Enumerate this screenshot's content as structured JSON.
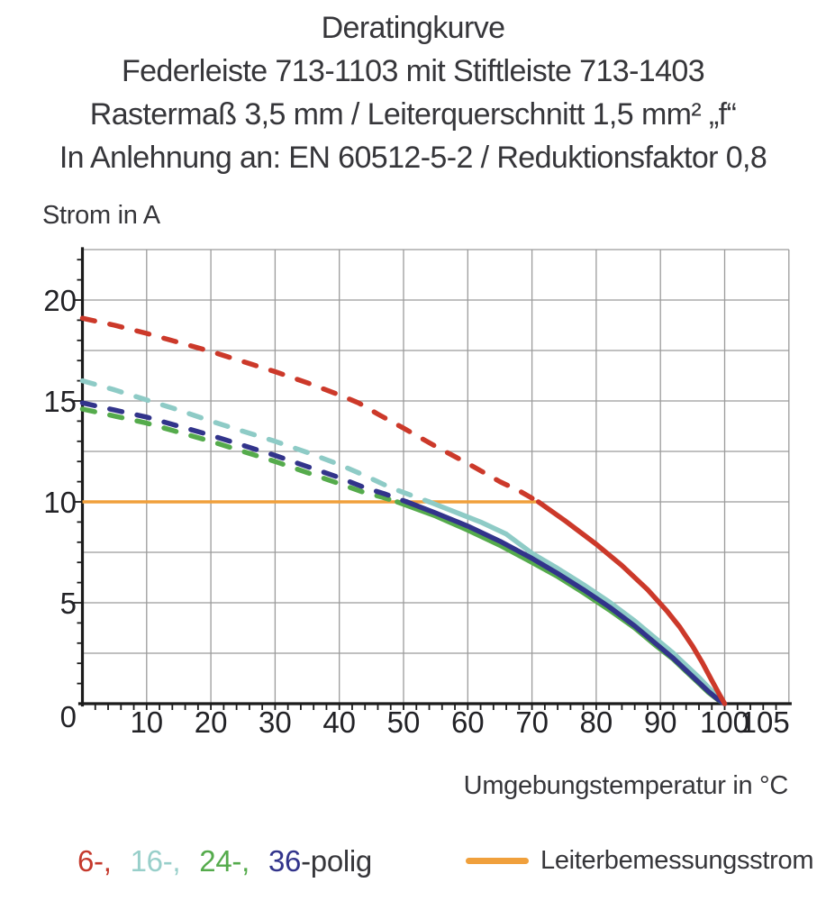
{
  "title": {
    "line1": "Deratingkurve",
    "line2": "Federleiste 713-1103 mit Stiftleiste 713-1403",
    "line3": "Rastermaß 3,5 mm / Leiterquerschnitt 1,5 mm² „f“",
    "line4": "In Anlehnung an: EN 60512-5-2 / Reduktionsfaktor 0,8"
  },
  "axes": {
    "y_label": "Strom in A",
    "x_label": "Umgebungstemperatur in °C"
  },
  "legend": {
    "pole_items": [
      {
        "label": "6-,",
        "color": "#c5392c"
      },
      {
        "label": "16-,",
        "color": "#98cfca"
      },
      {
        "label": "24-,",
        "color": "#55ab4c"
      },
      {
        "label": "36",
        "color": "#32348b"
      }
    ],
    "pole_suffix": {
      "label": "-polig",
      "color": "#36363a"
    },
    "rated_current_label": "Leiterbemessungsstrom",
    "rated_current_color": "#f0a03c"
  },
  "chart_data": {
    "type": "line",
    "title": "Deratingkurve Federleiste 713-1103 mit Stiftleiste 713-1403",
    "xlabel": "Umgebungstemperatur in °C",
    "ylabel": "Strom in A",
    "xlim": [
      0,
      110
    ],
    "ylim": [
      0,
      22.5
    ],
    "x_gridline_step": 10,
    "y_gridline_step": 2.5,
    "x_minor_tick_step": 2,
    "y_minor_tick_step": 1,
    "x_tick_labels": [
      10,
      20,
      30,
      40,
      50,
      60,
      70,
      80,
      90,
      100,
      105
    ],
    "y_tick_labels": [
      0,
      5,
      10,
      15,
      20
    ],
    "grid_color": "#9b9b9b",
    "axis_color": "#1b1b1b",
    "reference_line": {
      "name": "Leiterbemessungsstrom",
      "y": 10,
      "x_start": 0,
      "x_end": 71,
      "color": "#f0a03c"
    },
    "series": [
      {
        "name": "24-polig",
        "color": "#55ab4c",
        "dashed_points": [
          [
            0,
            14.6
          ],
          [
            5,
            14.25
          ],
          [
            10,
            13.9
          ],
          [
            15,
            13.45
          ],
          [
            20,
            13.0
          ],
          [
            25,
            12.5
          ],
          [
            30,
            12.0
          ],
          [
            35,
            11.45
          ],
          [
            40,
            10.9
          ],
          [
            44,
            10.45
          ],
          [
            46.5,
            10.25
          ],
          [
            49,
            10.0
          ]
        ],
        "solid_points": [
          [
            49,
            10.0
          ],
          [
            55,
            9.3
          ],
          [
            60,
            8.6
          ],
          [
            65,
            7.85
          ],
          [
            70,
            7.0
          ],
          [
            74,
            6.3
          ],
          [
            78,
            5.5
          ],
          [
            82,
            4.65
          ],
          [
            86,
            3.75
          ],
          [
            89,
            2.95
          ],
          [
            92,
            2.2
          ],
          [
            94,
            1.6
          ],
          [
            96,
            1.0
          ],
          [
            97.5,
            0.55
          ],
          [
            99,
            0.18
          ],
          [
            100,
            0
          ]
        ]
      },
      {
        "name": "16-polig",
        "color": "#8ecbc6",
        "dashed_points": [
          [
            0,
            16.0
          ],
          [
            5,
            15.55
          ],
          [
            10,
            15.05
          ],
          [
            15,
            14.55
          ],
          [
            20,
            14.0
          ],
          [
            25,
            13.5
          ],
          [
            30,
            13.0
          ],
          [
            35,
            12.45
          ],
          [
            40,
            11.85
          ],
          [
            44,
            11.3
          ],
          [
            48,
            10.7
          ],
          [
            51,
            10.35
          ],
          [
            54,
            10.0
          ]
        ],
        "solid_points": [
          [
            54,
            10.0
          ],
          [
            58,
            9.5
          ],
          [
            62,
            9.0
          ],
          [
            66,
            8.4
          ],
          [
            70,
            7.45
          ],
          [
            74,
            6.7
          ],
          [
            78,
            5.9
          ],
          [
            82,
            5.05
          ],
          [
            86,
            4.1
          ],
          [
            89,
            3.3
          ],
          [
            92,
            2.5
          ],
          [
            94,
            1.9
          ],
          [
            96,
            1.3
          ],
          [
            97.5,
            0.8
          ],
          [
            99,
            0.3
          ],
          [
            100,
            0
          ]
        ]
      },
      {
        "name": "36-polig",
        "color": "#32348b",
        "dashed_points": [
          [
            0,
            14.9
          ],
          [
            5,
            14.55
          ],
          [
            10,
            14.2
          ],
          [
            15,
            13.75
          ],
          [
            20,
            13.3
          ],
          [
            25,
            12.8
          ],
          [
            30,
            12.3
          ],
          [
            35,
            11.75
          ],
          [
            40,
            11.2
          ],
          [
            44,
            10.7
          ],
          [
            47,
            10.4
          ],
          [
            50.5,
            10.0
          ]
        ],
        "solid_points": [
          [
            50.5,
            10.0
          ],
          [
            55,
            9.45
          ],
          [
            60,
            8.8
          ],
          [
            65,
            8.05
          ],
          [
            70,
            7.2
          ],
          [
            74,
            6.45
          ],
          [
            78,
            5.65
          ],
          [
            82,
            4.8
          ],
          [
            86,
            3.85
          ],
          [
            89,
            3.05
          ],
          [
            92,
            2.25
          ],
          [
            94,
            1.65
          ],
          [
            96,
            1.05
          ],
          [
            97.5,
            0.6
          ],
          [
            99,
            0.2
          ],
          [
            100,
            0
          ]
        ]
      },
      {
        "name": "6-polig",
        "color": "#cc392a",
        "dashed_points": [
          [
            0,
            19.1
          ],
          [
            5,
            18.75
          ],
          [
            10,
            18.35
          ],
          [
            15,
            17.9
          ],
          [
            20,
            17.45
          ],
          [
            25,
            16.95
          ],
          [
            30,
            16.45
          ],
          [
            35,
            15.9
          ],
          [
            40,
            15.3
          ],
          [
            43,
            14.9
          ],
          [
            46,
            14.35
          ],
          [
            50,
            13.65
          ],
          [
            55,
            12.75
          ],
          [
            60,
            11.9
          ],
          [
            65,
            11.0
          ],
          [
            68,
            10.55
          ],
          [
            71,
            10.0
          ]
        ],
        "solid_points": [
          [
            71,
            10.0
          ],
          [
            75,
            9.1
          ],
          [
            80,
            7.9
          ],
          [
            84,
            6.85
          ],
          [
            88,
            5.65
          ],
          [
            91,
            4.6
          ],
          [
            93,
            3.8
          ],
          [
            95,
            2.85
          ],
          [
            96.5,
            2.05
          ],
          [
            98,
            1.15
          ],
          [
            99.2,
            0.45
          ],
          [
            100,
            0
          ]
        ]
      }
    ]
  }
}
